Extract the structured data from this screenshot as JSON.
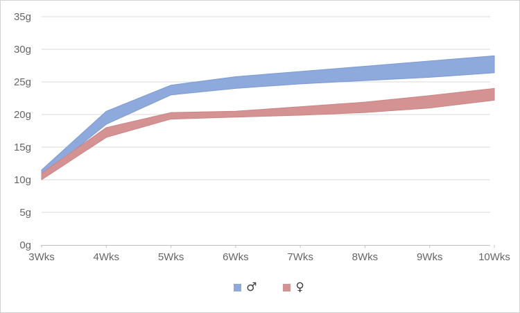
{
  "legend": [
    {
      "label": "♂"
    },
    {
      "label": "♀"
    }
  ],
  "chart_data": {
    "type": "area",
    "subtype": "range_band",
    "title": "",
    "xlabel": "",
    "ylabel": "",
    "unit": "g",
    "categories": [
      "3Wks",
      "4Wks",
      "5Wks",
      "6Wks",
      "7Wks",
      "8Wks",
      "9Wks",
      "10Wks"
    ],
    "series": [
      {
        "name": "♂",
        "id": "male",
        "color": "#8ea9db",
        "edge_color": "#7d9bd1",
        "lower": [
          10.5,
          18.5,
          23.0,
          24.0,
          24.7,
          25.2,
          25.7,
          26.4
        ],
        "upper": [
          11.5,
          20.5,
          24.5,
          25.8,
          26.6,
          27.4,
          28.2,
          29.0
        ]
      },
      {
        "name": "♀",
        "id": "female",
        "color": "#d59292",
        "edge_color": "#cb8484",
        "lower": [
          10.0,
          16.5,
          19.3,
          19.6,
          19.9,
          20.3,
          21.0,
          22.2
        ],
        "upper": [
          11.0,
          18.0,
          20.3,
          20.5,
          21.2,
          21.9,
          22.9,
          24.0
        ]
      }
    ],
    "ylim": [
      0,
      35
    ],
    "y_tick_step": 5,
    "y_tick_labels": [
      "0g",
      "5g",
      "10g",
      "15g",
      "20g",
      "25g",
      "30g",
      "35g"
    ],
    "grid": true,
    "legend_position": "bottom",
    "colors": {
      "grid": "#d9d9d9",
      "axis": "#c0c0c0",
      "tick_label": "#656565",
      "legend_text": "#3f3f3f",
      "frame_border": "#d2d2d2",
      "background": "#ffffff"
    }
  }
}
